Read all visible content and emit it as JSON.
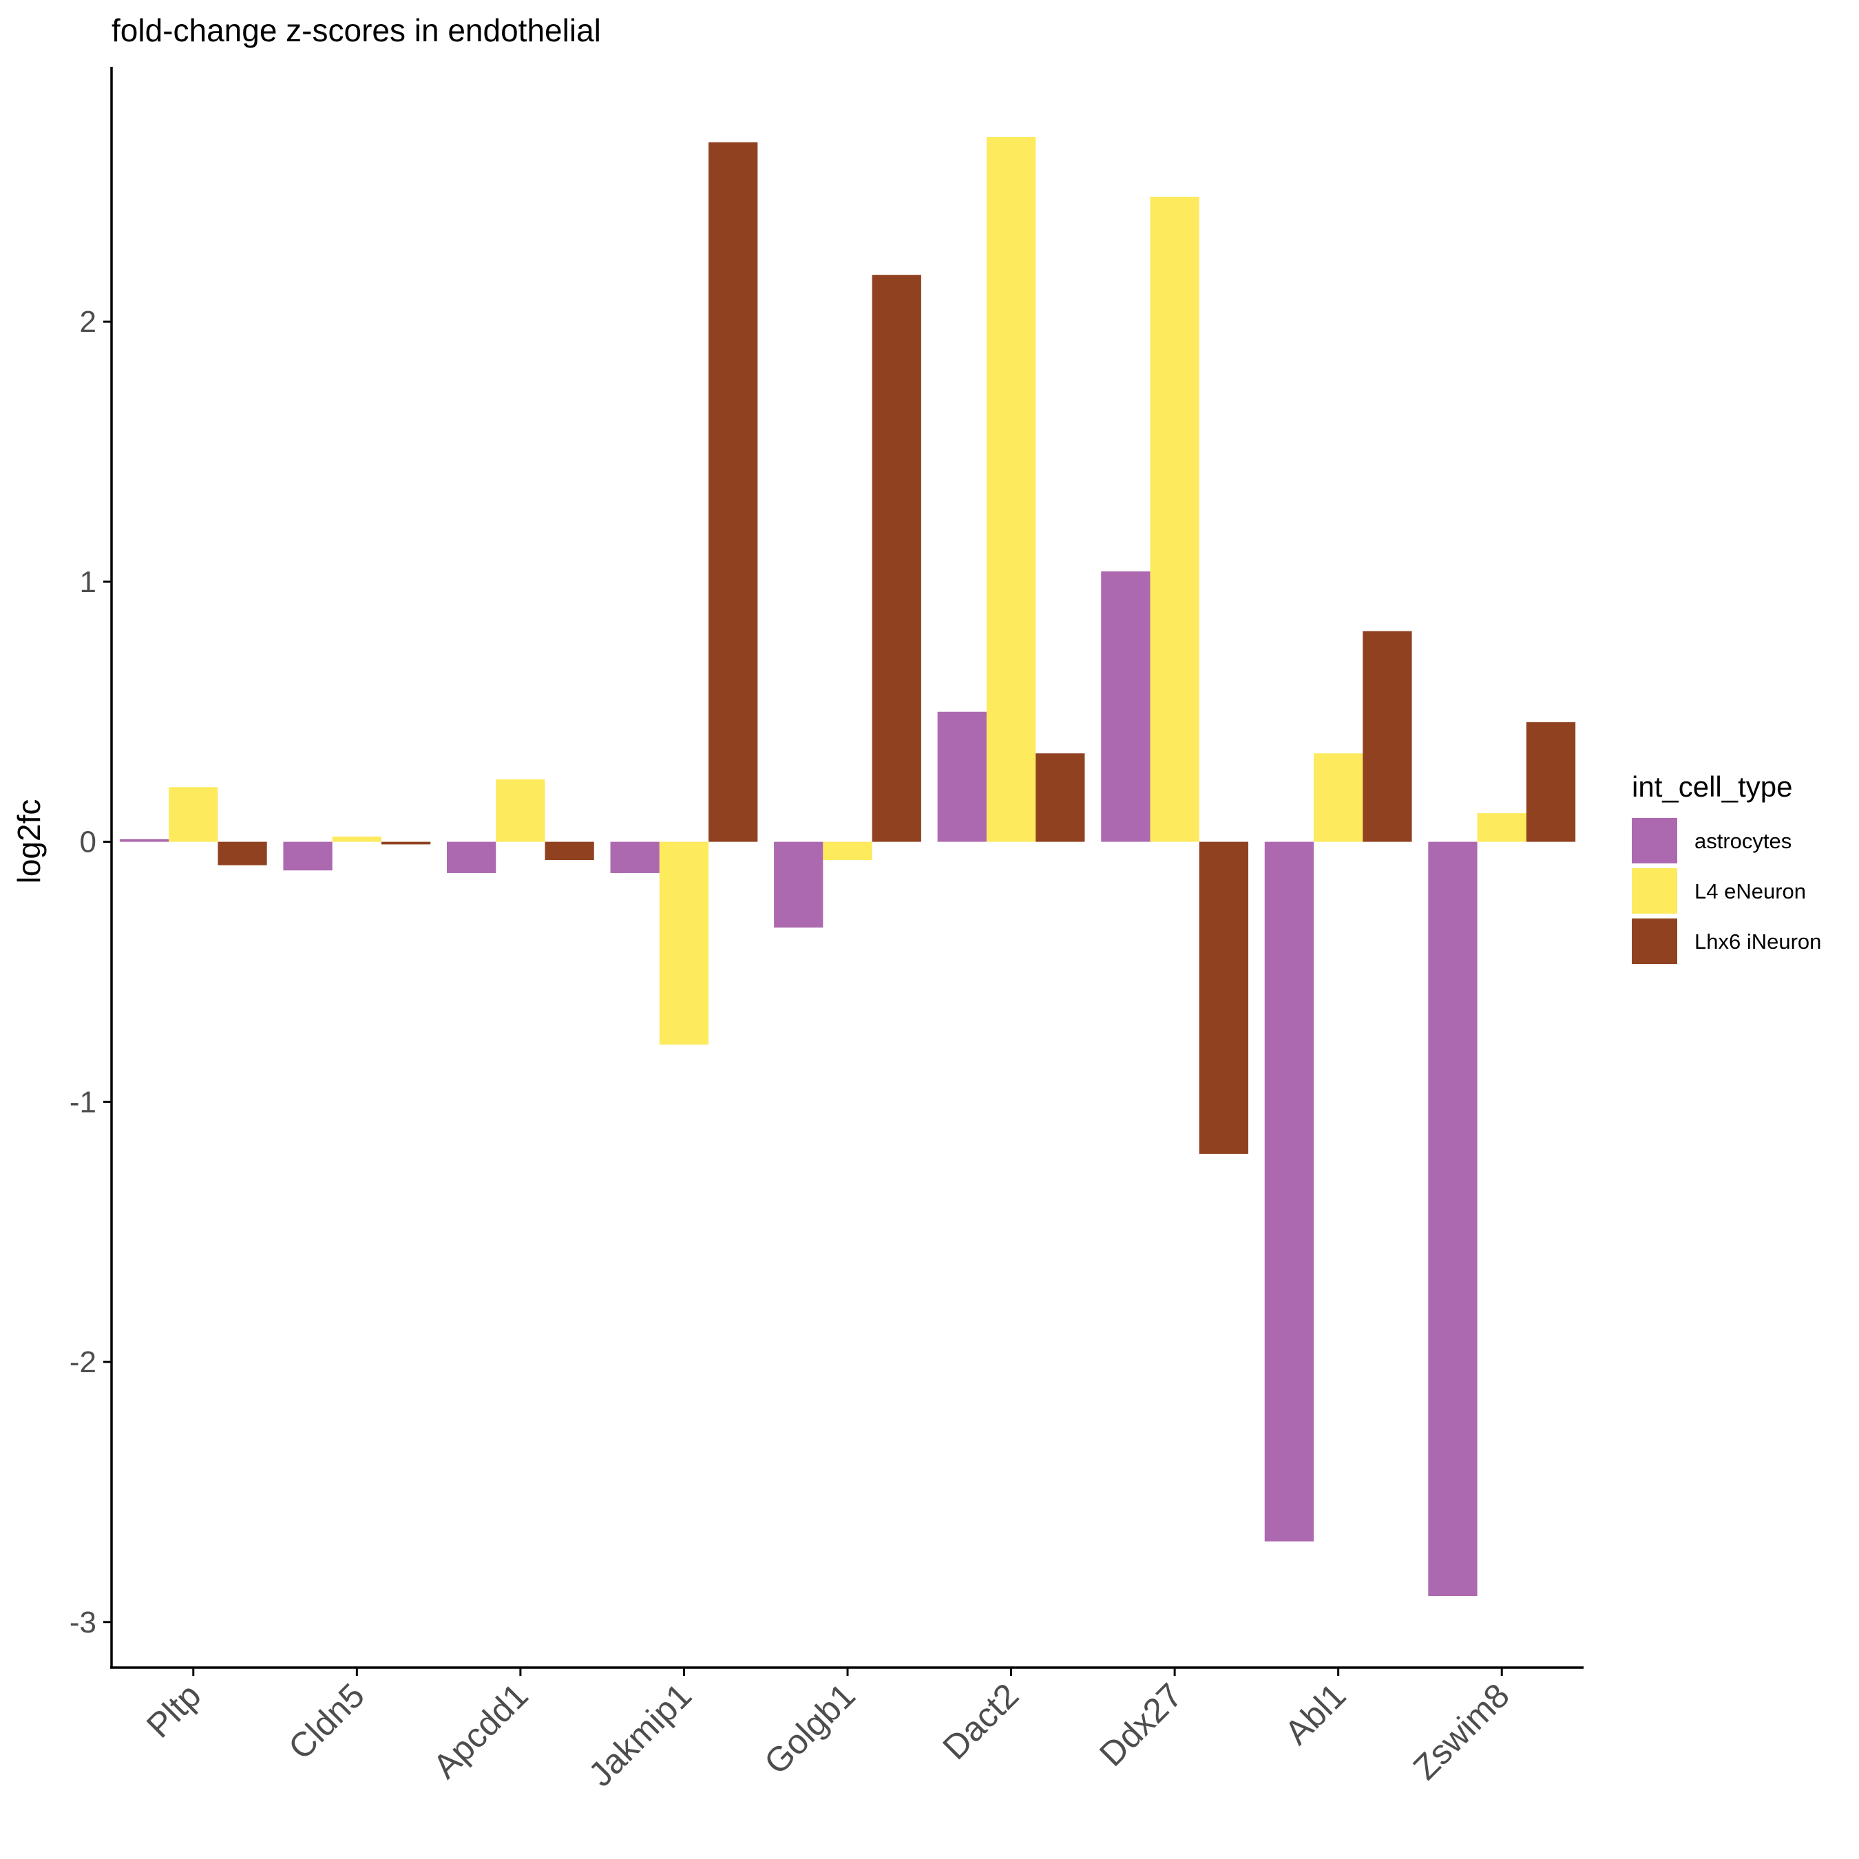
{
  "chart_data": {
    "type": "bar",
    "title": "fold-change z-scores in endothelial",
    "xlabel": "",
    "ylabel": "log2fc",
    "ylim": [
      -3.17,
      2.98
    ],
    "yticks": [
      -3,
      -2,
      -1,
      0,
      1,
      2
    ],
    "ytick_labels": [
      "-3",
      "-2",
      "-1",
      "0",
      "1",
      "2"
    ],
    "grid": false,
    "legend_position": "right",
    "legend_title": "int_cell_type",
    "categories": [
      "Pltp",
      "Cldn5",
      "Apcdd1",
      "Jakmip1",
      "Golgb1",
      "Dact2",
      "Ddx27",
      "Abl1",
      "Zswim8"
    ],
    "series": [
      {
        "name": "astrocytes",
        "color": "#ad69b0",
        "values": [
          0.01,
          -0.11,
          -0.12,
          -0.12,
          -0.33,
          0.5,
          1.04,
          -2.69,
          -2.9
        ]
      },
      {
        "name": "L4 eNeuron",
        "color": "#fdea5d",
        "values": [
          0.21,
          0.02,
          0.24,
          -0.78,
          -0.07,
          2.71,
          2.48,
          0.34,
          0.11
        ]
      },
      {
        "name": "Lhx6 iNeuron",
        "color": "#904120",
        "values": [
          -0.09,
          -0.01,
          -0.07,
          2.69,
          2.18,
          0.34,
          -1.2,
          0.81,
          0.46
        ]
      }
    ]
  }
}
